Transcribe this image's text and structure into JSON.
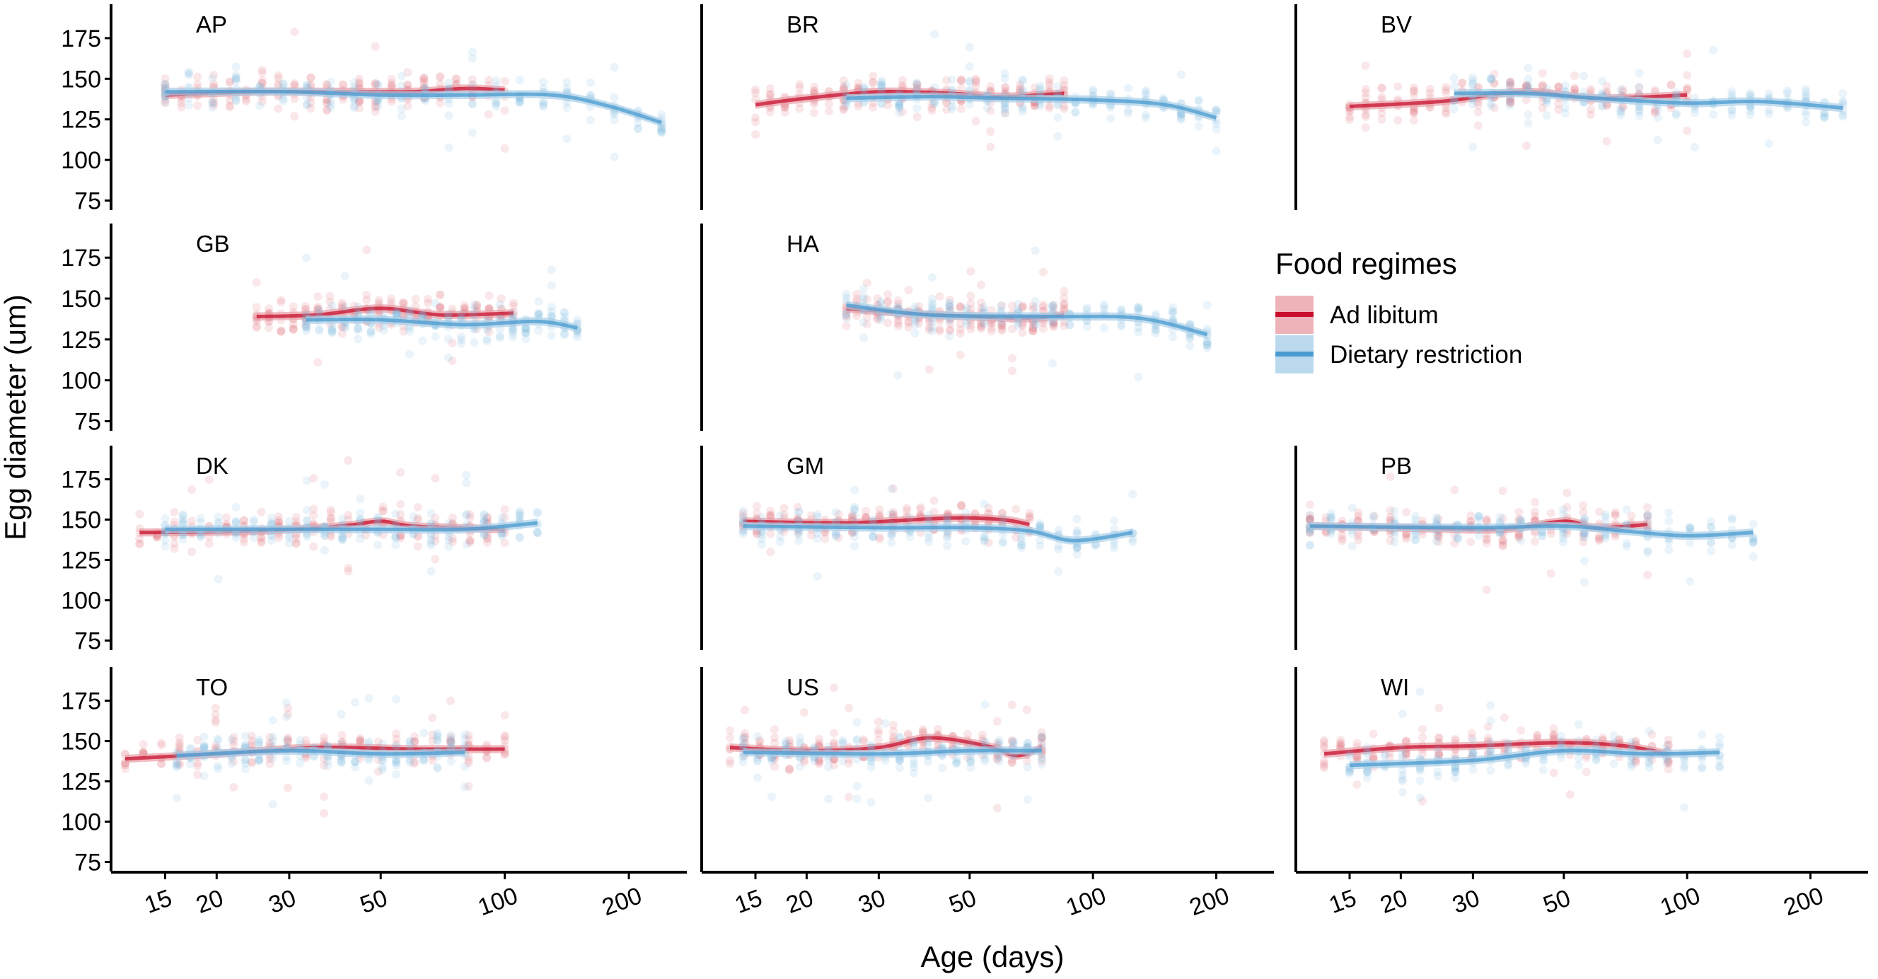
{
  "chart_data": {
    "type": "scatter",
    "title": "",
    "xlabel": "Age (days)",
    "ylabel": "Egg diameter (um)",
    "x_scale": "log",
    "xlim": [
      11,
      270
    ],
    "ylim": [
      70,
      195
    ],
    "x_ticks": [
      15,
      20,
      30,
      50,
      100,
      200
    ],
    "y_ticks": [
      75,
      100,
      125,
      150,
      175
    ],
    "grid": false,
    "legend": {
      "title": "Food regimes",
      "position": "right",
      "entries": [
        {
          "name": "Ad libitum",
          "color": "#c8102e"
        },
        {
          "name": "Dietary restriction",
          "color": "#4a9bd0"
        }
      ]
    },
    "panels": [
      {
        "label": "AP",
        "series": [
          {
            "name": "Ad libitum",
            "x": [
              15,
              25,
              40,
              60,
              80,
              100
            ],
            "y": [
              140,
              142,
              142,
              142,
              144,
              143
            ]
          },
          {
            "name": "Dietary restriction",
            "x": [
              15,
              30,
              50,
              80,
              130,
              180,
              240
            ],
            "y": [
              142,
              142,
              140,
              140,
              140,
              133,
              123
            ]
          }
        ]
      },
      {
        "label": "BR",
        "series": [
          {
            "name": "Ad libitum",
            "x": [
              15,
              20,
              30,
              45,
              60,
              85
            ],
            "y": [
              134,
              138,
              142,
              141,
              139,
              141
            ]
          },
          {
            "name": "Dietary restriction",
            "x": [
              25,
              40,
              60,
              100,
              150,
              200
            ],
            "y": [
              138,
              139,
              138,
              137,
              134,
              126
            ]
          }
        ]
      },
      {
        "label": "BV",
        "series": [
          {
            "name": "Ad libitum",
            "x": [
              15,
              25,
              40,
              60,
              100
            ],
            "y": [
              133,
              136,
              142,
              138,
              140
            ]
          },
          {
            "name": "Dietary restriction",
            "x": [
              27,
              40,
              60,
              100,
              150,
              240
            ],
            "y": [
              141,
              141,
              138,
              135,
              136,
              132
            ]
          }
        ]
      },
      {
        "label": "GB",
        "series": [
          {
            "name": "Ad libitum",
            "x": [
              25,
              35,
              50,
              70,
              105
            ],
            "y": [
              139,
              140,
              144,
              140,
              141
            ]
          },
          {
            "name": "Dietary restriction",
            "x": [
              33,
              50,
              80,
              120,
              150
            ],
            "y": [
              137,
              137,
              134,
              136,
              132
            ]
          }
        ]
      },
      {
        "label": "HA",
        "series": [
          {
            "name": "Ad libitum",
            "x": [
              25,
              35,
              50,
              70,
              85
            ],
            "y": [
              144,
              141,
              139,
              138,
              140
            ]
          },
          {
            "name": "Dietary restriction",
            "x": [
              25,
              40,
              80,
              130,
              190
            ],
            "y": [
              146,
              140,
              139,
              138,
              128
            ]
          }
        ]
      },
      {
        "label": "DK",
        "series": [
          {
            "name": "Ad libitum",
            "x": [
              13,
              25,
              40,
              50,
              60,
              100
            ],
            "y": [
              142,
              143,
              146,
              149,
              146,
              144
            ]
          },
          {
            "name": "Dietary restriction",
            "x": [
              15,
              30,
              50,
              80,
              120
            ],
            "y": [
              144,
              144,
              144,
              144,
              148
            ]
          }
        ]
      },
      {
        "label": "GM",
        "series": [
          {
            "name": "Ad libitum",
            "x": [
              14,
              25,
              45,
              60,
              70
            ],
            "y": [
              149,
              148,
              151,
              150,
              147
            ]
          },
          {
            "name": "Dietary restriction",
            "x": [
              14,
              30,
              50,
              70,
              90,
              125
            ],
            "y": [
              146,
              145,
              145,
              143,
              137,
              142
            ]
          }
        ]
      },
      {
        "label": "PB",
        "series": [
          {
            "name": "Ad libitum",
            "x": [
              12,
              20,
              35,
              50,
              60,
              80
            ],
            "y": [
              146,
              145,
              144,
              149,
              145,
              147
            ]
          },
          {
            "name": "Dietary restriction",
            "x": [
              12,
              30,
              50,
              70,
              100,
              145
            ],
            "y": [
              146,
              145,
              146,
              143,
              140,
              142
            ]
          }
        ]
      },
      {
        "label": "TO",
        "series": [
          {
            "name": "Ad libitum",
            "x": [
              12,
              20,
              35,
              60,
              100
            ],
            "y": [
              139,
              142,
              146,
              145,
              145
            ]
          },
          {
            "name": "Dietary restriction",
            "x": [
              16,
              30,
              50,
              80
            ],
            "y": [
              141,
              144,
              142,
              143
            ]
          }
        ]
      },
      {
        "label": "US",
        "series": [
          {
            "name": "Ad libitum",
            "x": [
              13,
              20,
              30,
              40,
              55,
              65,
              75
            ],
            "y": [
              146,
              144,
              146,
              152,
              147,
              141,
              146
            ]
          },
          {
            "name": "Dietary restriction",
            "x": [
              14,
              30,
              50,
              75
            ],
            "y": [
              143,
              142,
              144,
              144
            ]
          }
        ]
      },
      {
        "label": "WI",
        "series": [
          {
            "name": "Ad libitum",
            "x": [
              13,
              20,
              30,
              50,
              70,
              90
            ],
            "y": [
              142,
              146,
              147,
              149,
              147,
              142
            ]
          },
          {
            "name": "Dietary restriction",
            "x": [
              15,
              30,
              50,
              80,
              120
            ],
            "y": [
              135,
              138,
              144,
              142,
              143
            ]
          }
        ]
      }
    ]
  }
}
